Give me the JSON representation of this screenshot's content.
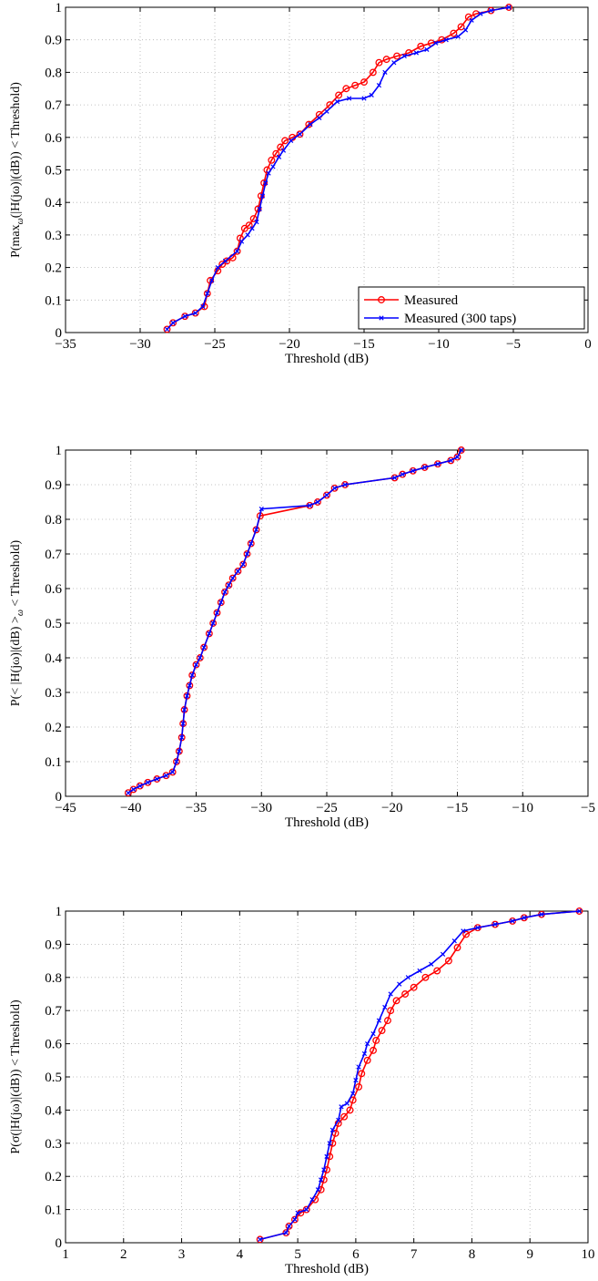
{
  "charts": [
    {
      "type": "line",
      "ylabel": "P(max_ω(|H(jω)|(dB)) < Threshold)",
      "ylabel_parts": [
        "P(max",
        "ω",
        "(|H(jω)|(dB)) < Threshold)"
      ],
      "xlabel": "Threshold (dB)",
      "xlim": [
        -35,
        0
      ],
      "ylim": [
        0,
        1
      ],
      "xticks": [
        -35,
        -30,
        -25,
        -20,
        -15,
        -10,
        -5,
        0
      ],
      "xtick_labels": [
        "−35",
        "−30",
        "−25",
        "−20",
        "−15",
        "−10",
        "−5",
        "0"
      ],
      "yticks": [
        0,
        0.1,
        0.2,
        0.3,
        0.4,
        0.5,
        0.6,
        0.7,
        0.8,
        0.9,
        1
      ],
      "ytick_labels": [
        "0",
        "0.1",
        "0.2",
        "0.3",
        "0.4",
        "0.5",
        "0.6",
        "0.7",
        "0.8",
        "0.9",
        "1"
      ],
      "grid": true,
      "legend_position": "bottom-right",
      "series": [
        {
          "name": "Measured",
          "color": "#ff0000",
          "marker": "circle",
          "x": [
            -28.2,
            -27.8,
            -27.0,
            -26.3,
            -25.7,
            -25.5,
            -25.3,
            -24.8,
            -24.5,
            -24.2,
            -23.8,
            -23.5,
            -23.3,
            -23.0,
            -22.7,
            -22.4,
            -22.1,
            -21.9,
            -21.7,
            -21.5,
            -21.2,
            -20.9,
            -20.6,
            -20.3,
            -19.8,
            -19.3,
            -18.7,
            -18.0,
            -17.3,
            -16.7,
            -16.2,
            -15.6,
            -15.0,
            -14.4,
            -14.0,
            -13.5,
            -12.8,
            -12.0,
            -11.2,
            -10.5,
            -9.8,
            -9.0,
            -8.5,
            -8.0,
            -7.5,
            -6.5,
            -5.3
          ],
          "y": [
            0.01,
            0.03,
            0.05,
            0.06,
            0.08,
            0.12,
            0.16,
            0.19,
            0.21,
            0.22,
            0.23,
            0.25,
            0.29,
            0.32,
            0.33,
            0.35,
            0.38,
            0.42,
            0.46,
            0.5,
            0.53,
            0.55,
            0.57,
            0.59,
            0.6,
            0.61,
            0.64,
            0.67,
            0.7,
            0.73,
            0.75,
            0.76,
            0.77,
            0.8,
            0.83,
            0.84,
            0.85,
            0.86,
            0.88,
            0.89,
            0.9,
            0.92,
            0.94,
            0.97,
            0.98,
            0.99,
            1.0
          ]
        },
        {
          "name": "Measured (300 taps)",
          "color": "#0000ff",
          "marker": "x",
          "x": [
            -28.2,
            -27.8,
            -27.0,
            -26.3,
            -25.8,
            -25.5,
            -25.2,
            -24.8,
            -24.3,
            -23.5,
            -23.2,
            -22.8,
            -22.5,
            -22.2,
            -22.0,
            -21.8,
            -21.6,
            -21.4,
            -21.1,
            -20.7,
            -20.4,
            -19.9,
            -19.3,
            -18.6,
            -18.0,
            -17.5,
            -16.8,
            -16.0,
            -15.0,
            -14.5,
            -14.0,
            -13.6,
            -13.0,
            -12.3,
            -11.5,
            -10.8,
            -10.2,
            -9.5,
            -8.7,
            -8.2,
            -7.8,
            -7.2,
            -6.5,
            -5.3
          ],
          "y": [
            0.01,
            0.03,
            0.05,
            0.06,
            0.08,
            0.12,
            0.16,
            0.2,
            0.22,
            0.25,
            0.28,
            0.3,
            0.32,
            0.34,
            0.38,
            0.42,
            0.46,
            0.49,
            0.51,
            0.54,
            0.56,
            0.59,
            0.61,
            0.64,
            0.66,
            0.68,
            0.71,
            0.72,
            0.72,
            0.73,
            0.76,
            0.8,
            0.83,
            0.85,
            0.86,
            0.87,
            0.89,
            0.9,
            0.91,
            0.93,
            0.96,
            0.98,
            0.99,
            1.0
          ]
        }
      ]
    },
    {
      "type": "line",
      "ylabel": "P(< |H(jω)|(dB) >_ω < Threshold)",
      "ylabel_parts": [
        "P(< |H(jω)|(dB) >",
        "ω",
        " < Threshold)"
      ],
      "xlabel": "Threshold (dB)",
      "xlim": [
        -45,
        -5
      ],
      "ylim": [
        0,
        1
      ],
      "xticks": [
        -45,
        -40,
        -35,
        -30,
        -25,
        -20,
        -15,
        -10,
        -5
      ],
      "xtick_labels": [
        "−45",
        "−40",
        "−35",
        "−30",
        "−25",
        "−20",
        "−15",
        "−10",
        "−5"
      ],
      "yticks": [
        0,
        0.1,
        0.2,
        0.3,
        0.4,
        0.5,
        0.6,
        0.7,
        0.8,
        0.9,
        1
      ],
      "ytick_labels": [
        "0",
        "0.1",
        "0.2",
        "0.3",
        "0.4",
        "0.5",
        "0.6",
        "0.7",
        "0.8",
        "0.9",
        "1"
      ],
      "grid": true,
      "legend_position": "none",
      "series": [
        {
          "name": "",
          "color": "#ff0000",
          "marker": "circle",
          "x": [
            -40.2,
            -39.8,
            -39.3,
            -38.7,
            -38.0,
            -37.3,
            -36.8,
            -36.5,
            -36.3,
            -36.1,
            -36.0,
            -35.9,
            -35.7,
            -35.5,
            -35.3,
            -35.0,
            -34.7,
            -34.4,
            -34.0,
            -33.7,
            -33.4,
            -33.1,
            -32.8,
            -32.5,
            -32.2,
            -31.8,
            -31.4,
            -31.1,
            -30.8,
            -30.4,
            -30.1,
            -26.3,
            -25.7,
            -25.0,
            -24.4,
            -23.6,
            -19.8,
            -19.2,
            -18.4,
            -17.5,
            -16.5,
            -15.5,
            -15.0,
            -14.7
          ],
          "y": [
            0.01,
            0.02,
            0.03,
            0.04,
            0.05,
            0.06,
            0.07,
            0.1,
            0.13,
            0.17,
            0.21,
            0.25,
            0.29,
            0.32,
            0.35,
            0.38,
            0.4,
            0.43,
            0.47,
            0.5,
            0.53,
            0.56,
            0.59,
            0.61,
            0.63,
            0.65,
            0.67,
            0.7,
            0.73,
            0.77,
            0.81,
            0.84,
            0.85,
            0.87,
            0.89,
            0.9,
            0.92,
            0.93,
            0.94,
            0.95,
            0.96,
            0.97,
            0.98,
            1.0
          ]
        },
        {
          "name": "",
          "color": "#0000ff",
          "marker": "x",
          "x": [
            -40.2,
            -39.8,
            -39.3,
            -38.7,
            -38.0,
            -37.3,
            -36.8,
            -36.5,
            -36.3,
            -36.1,
            -36.0,
            -35.9,
            -35.7,
            -35.5,
            -35.3,
            -35.0,
            -34.7,
            -34.4,
            -34.0,
            -33.7,
            -33.4,
            -33.1,
            -32.8,
            -32.5,
            -32.2,
            -31.8,
            -31.4,
            -31.1,
            -30.8,
            -30.4,
            -30.0,
            -26.3,
            -25.7,
            -25.0,
            -24.4,
            -23.6,
            -19.8,
            -19.2,
            -18.4,
            -17.5,
            -16.5,
            -15.5,
            -15.0,
            -14.7
          ],
          "y": [
            0.01,
            0.02,
            0.03,
            0.04,
            0.05,
            0.06,
            0.07,
            0.1,
            0.13,
            0.17,
            0.21,
            0.25,
            0.29,
            0.32,
            0.35,
            0.38,
            0.4,
            0.43,
            0.47,
            0.5,
            0.53,
            0.56,
            0.59,
            0.61,
            0.63,
            0.65,
            0.67,
            0.7,
            0.73,
            0.77,
            0.83,
            0.84,
            0.85,
            0.87,
            0.89,
            0.9,
            0.92,
            0.93,
            0.94,
            0.95,
            0.96,
            0.97,
            0.98,
            1.0
          ]
        }
      ]
    },
    {
      "type": "line",
      "ylabel": "P(σ(|H(jω)|(dB)) < Threshold)",
      "ylabel_parts": [
        "P(σ(|H(jω)|(dB)) < Threshold)"
      ],
      "xlabel": "Threshold (dB)",
      "xlim": [
        1,
        10
      ],
      "ylim": [
        0,
        1
      ],
      "xticks": [
        1,
        2,
        3,
        4,
        5,
        6,
        7,
        8,
        9,
        10
      ],
      "xtick_labels": [
        "1",
        "2",
        "3",
        "4",
        "5",
        "6",
        "7",
        "8",
        "9",
        "10"
      ],
      "yticks": [
        0,
        0.1,
        0.2,
        0.3,
        0.4,
        0.5,
        0.6,
        0.7,
        0.8,
        0.9,
        1
      ],
      "ytick_labels": [
        "0",
        "0.1",
        "0.2",
        "0.3",
        "0.4",
        "0.5",
        "0.6",
        "0.7",
        "0.8",
        "0.9",
        "1"
      ],
      "grid": true,
      "legend_position": "none",
      "series": [
        {
          "name": "",
          "color": "#ff0000",
          "marker": "circle",
          "x": [
            4.35,
            4.8,
            4.85,
            4.95,
            5.05,
            5.15,
            5.3,
            5.4,
            5.45,
            5.5,
            5.55,
            5.6,
            5.65,
            5.7,
            5.8,
            5.9,
            5.95,
            6.05,
            6.1,
            6.2,
            6.3,
            6.35,
            6.45,
            6.55,
            6.6,
            6.7,
            6.85,
            7.0,
            7.2,
            7.4,
            7.6,
            7.75,
            7.9,
            8.1,
            8.4,
            8.7,
            8.9,
            9.2,
            9.85
          ],
          "y": [
            0.01,
            0.03,
            0.05,
            0.07,
            0.09,
            0.1,
            0.13,
            0.16,
            0.19,
            0.22,
            0.26,
            0.3,
            0.33,
            0.36,
            0.38,
            0.4,
            0.43,
            0.47,
            0.51,
            0.55,
            0.58,
            0.61,
            0.64,
            0.67,
            0.7,
            0.73,
            0.75,
            0.77,
            0.8,
            0.82,
            0.85,
            0.89,
            0.93,
            0.95,
            0.96,
            0.97,
            0.98,
            0.99,
            1.0
          ]
        },
        {
          "name": "",
          "color": "#0000ff",
          "marker": "x",
          "x": [
            4.35,
            4.8,
            4.85,
            4.95,
            5.0,
            5.15,
            5.25,
            5.35,
            5.4,
            5.45,
            5.5,
            5.55,
            5.6,
            5.7,
            5.75,
            5.85,
            5.95,
            6.0,
            6.05,
            6.15,
            6.2,
            6.3,
            6.4,
            6.5,
            6.6,
            6.75,
            6.9,
            7.1,
            7.3,
            7.5,
            7.7,
            7.85,
            8.1,
            8.4,
            8.7,
            8.9,
            9.2,
            9.85
          ],
          "y": [
            0.01,
            0.03,
            0.05,
            0.07,
            0.09,
            0.1,
            0.13,
            0.16,
            0.19,
            0.22,
            0.26,
            0.3,
            0.34,
            0.37,
            0.41,
            0.42,
            0.45,
            0.49,
            0.53,
            0.57,
            0.6,
            0.63,
            0.67,
            0.71,
            0.75,
            0.78,
            0.8,
            0.82,
            0.84,
            0.87,
            0.91,
            0.94,
            0.95,
            0.96,
            0.97,
            0.98,
            0.99,
            1.0
          ]
        }
      ]
    }
  ]
}
